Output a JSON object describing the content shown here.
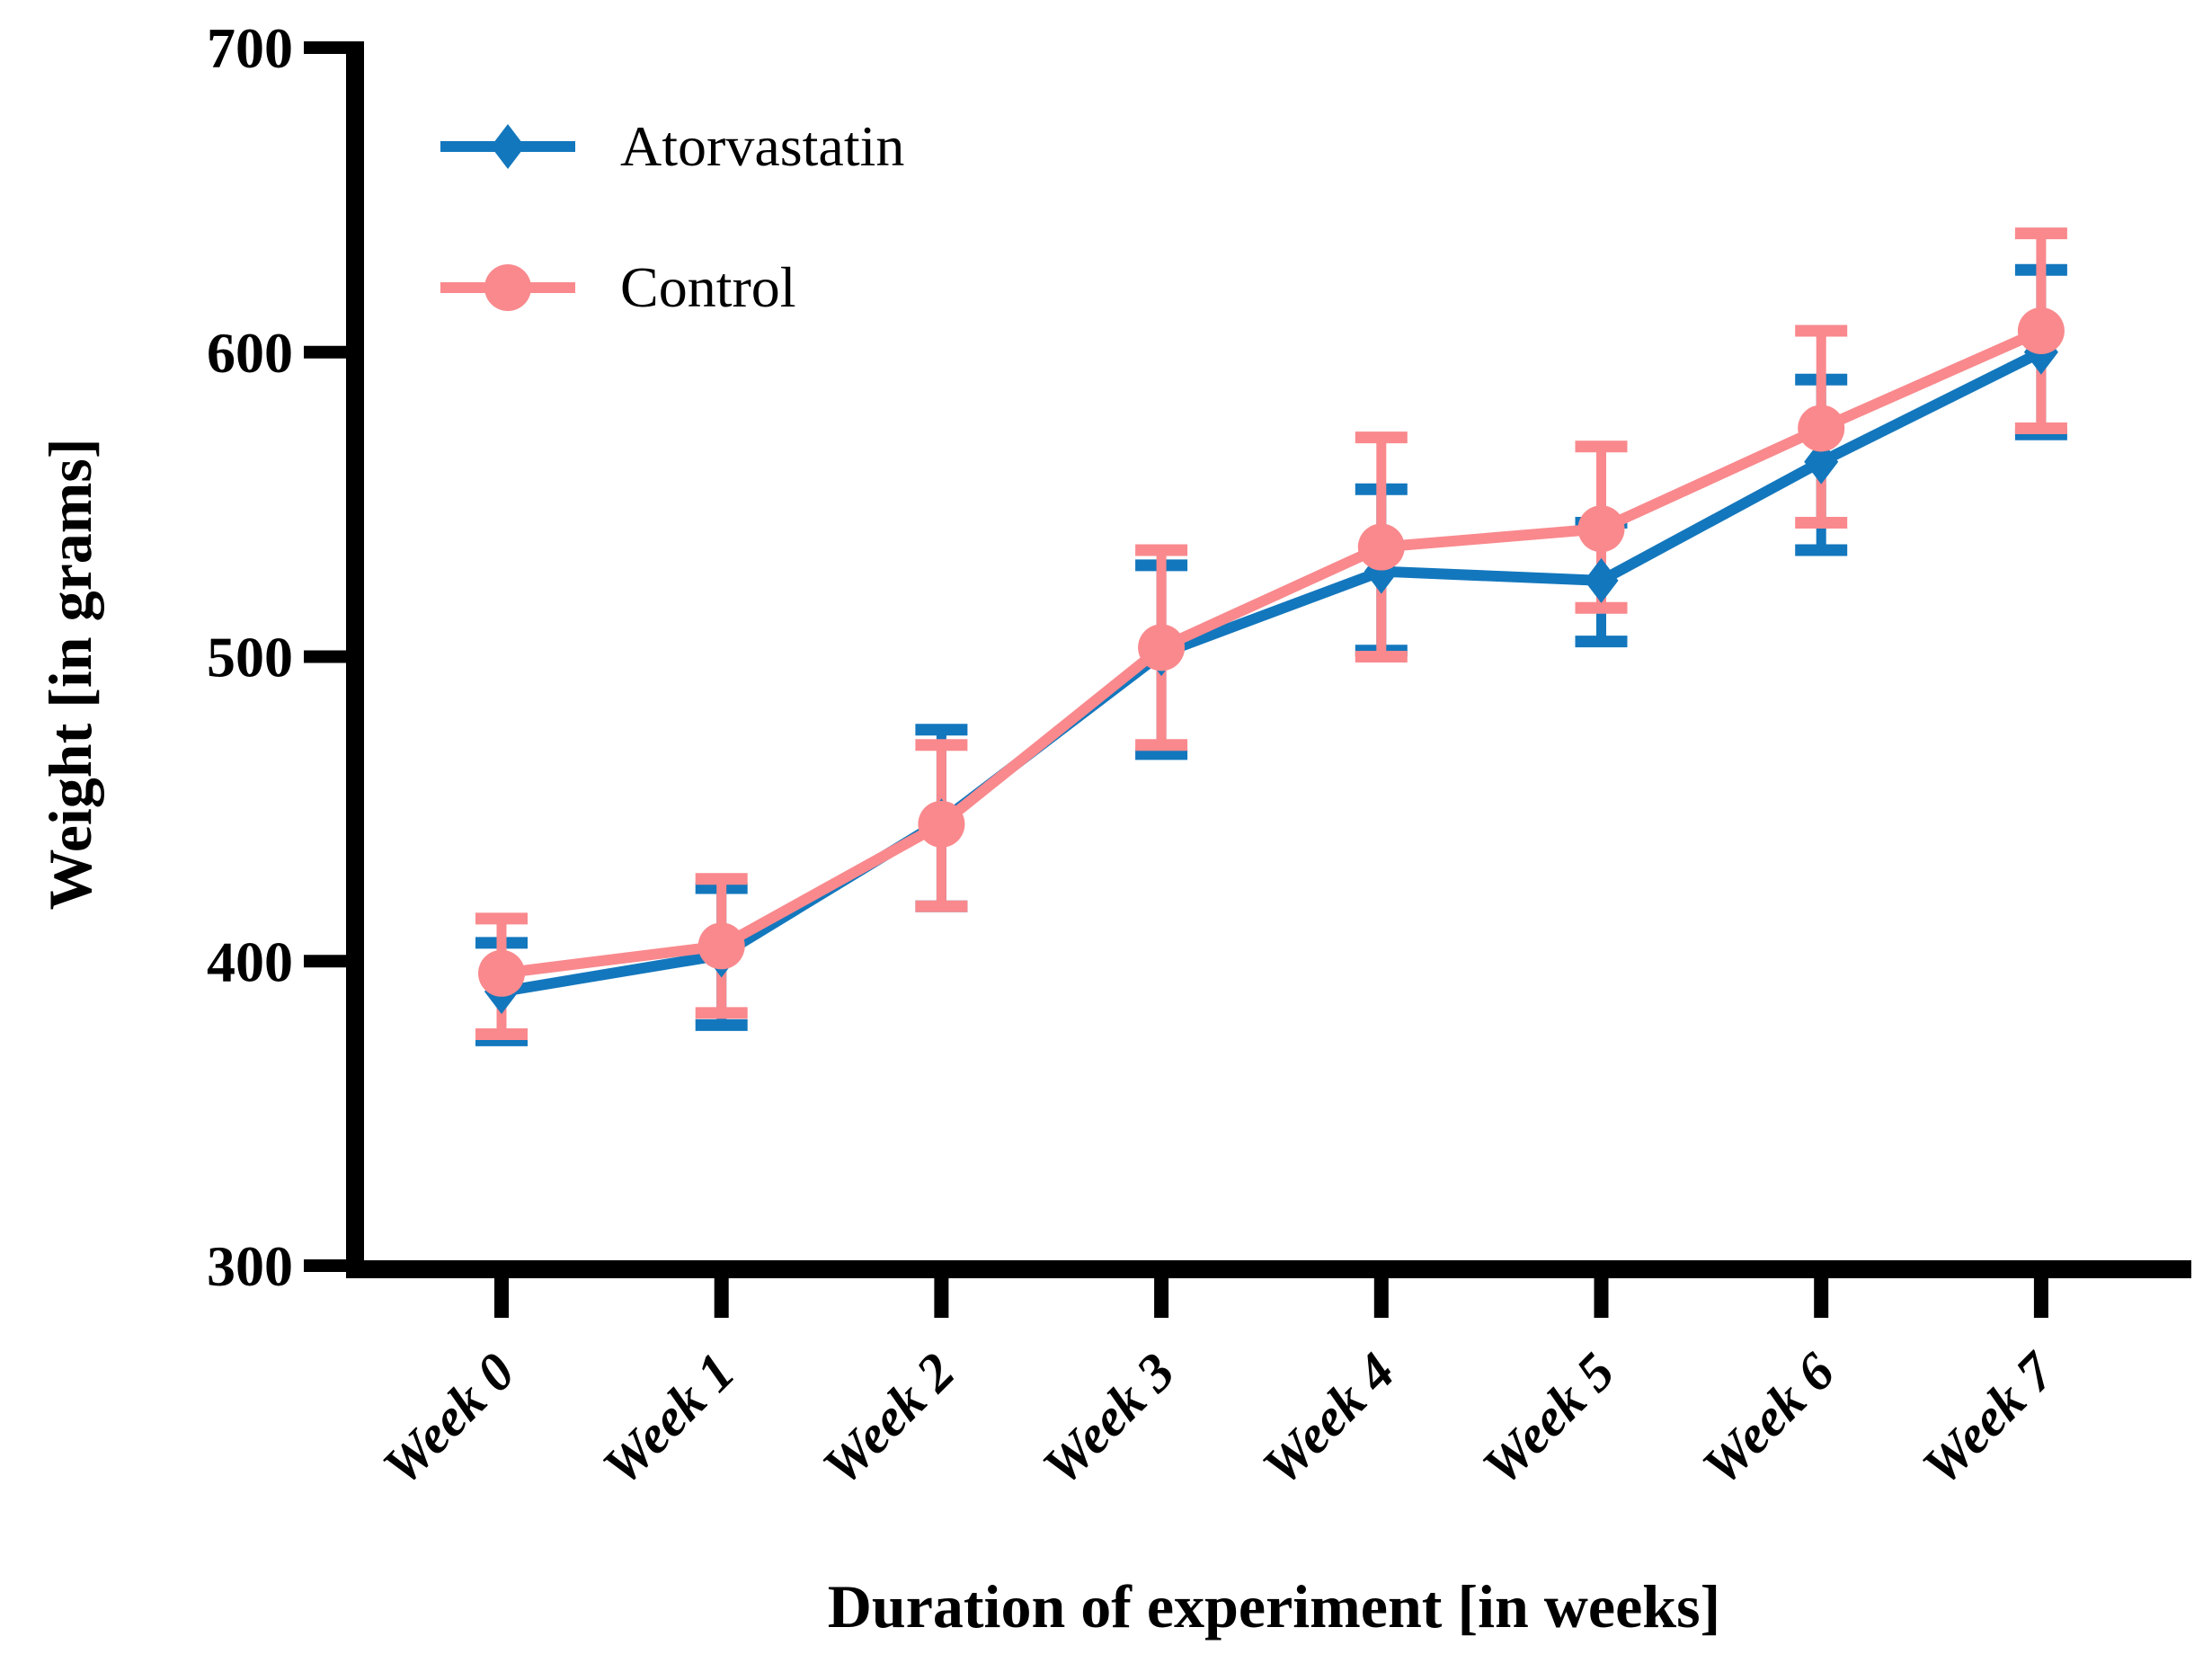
{
  "figure": {
    "background": "#ffffff",
    "text_color": "#000000",
    "axis_color": "#000000"
  },
  "chart_data": {
    "type": "line",
    "title": "",
    "xlabel": "Duration of experiment [in weeks]",
    "ylabel": "Weight [in grams]",
    "categories": [
      "Week 0",
      "Week 1",
      "Week 2",
      "Week 3",
      "Week 4",
      "Week 5",
      "Week 6",
      "Week 7"
    ],
    "ylim": [
      300,
      700
    ],
    "yticks": [
      300,
      400,
      500,
      600,
      700
    ],
    "grid": false,
    "legend_position": "inside-top-left",
    "error_bars": true,
    "series": [
      {
        "name": "Atorvastatin",
        "marker": "diamond",
        "color": "#1377BD",
        "values": [
          390,
          402,
          446,
          501,
          528,
          525,
          564,
          600
        ],
        "error_low": [
          374,
          379,
          418,
          468,
          502,
          505,
          535,
          573
        ],
        "error_high": [
          406,
          424,
          476,
          530,
          555,
          544,
          591,
          627
        ]
      },
      {
        "name": "Control",
        "marker": "circle",
        "color": "#F9898D",
        "values": [
          396,
          405,
          445,
          503,
          536,
          542,
          575,
          607
        ],
        "error_low": [
          376,
          383,
          418,
          471,
          500,
          516,
          544,
          575
        ],
        "error_high": [
          414,
          427,
          471,
          535,
          572,
          569,
          607,
          639
        ]
      }
    ]
  }
}
